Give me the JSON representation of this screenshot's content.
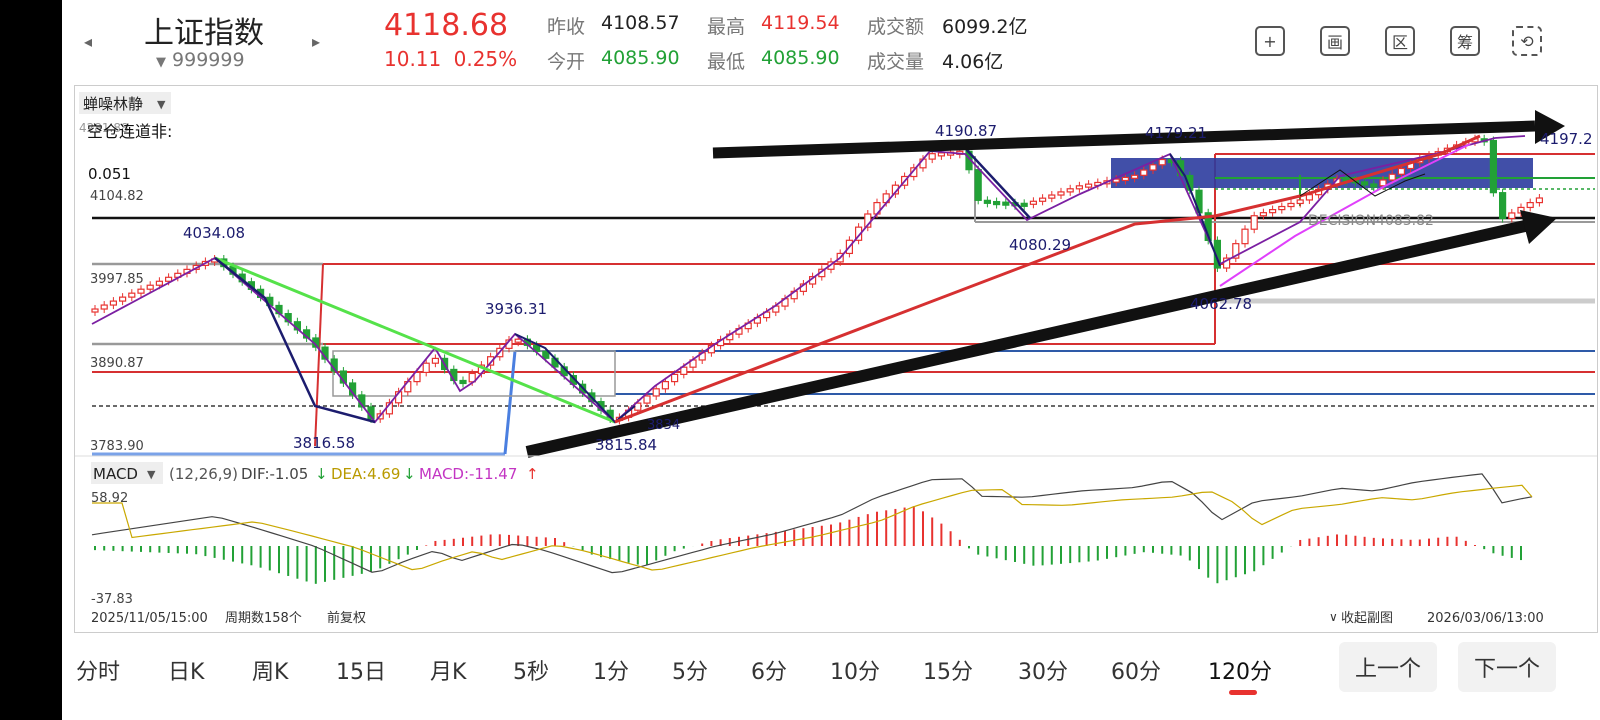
{
  "header": {
    "title": "上证指数",
    "code": "999999",
    "price": "4118.68",
    "change": "10.11",
    "change_pct": "0.25%",
    "stats": {
      "prev_close_label": "昨收",
      "prev_close": "4108.57",
      "high_label": "最高",
      "high": "4119.54",
      "amount_label": "成交额",
      "amount": "6099.2亿",
      "open_label": "今开",
      "open": "4085.90",
      "low_label": "最低",
      "low": "4085.90",
      "volume_label": "成交量",
      "volume": "4.06亿"
    },
    "tools": [
      {
        "name": "add-icon",
        "glyph": "+"
      },
      {
        "name": "draw-icon",
        "glyph": "画"
      },
      {
        "name": "range-icon",
        "glyph": "区"
      },
      {
        "name": "chips-icon",
        "glyph": "筹"
      },
      {
        "name": "rotate-screen-icon",
        "glyph": "⟲"
      }
    ]
  },
  "indicator_selector": "蝉噪林静",
  "chart_annotations": {
    "status_text": "空仓连道非:",
    "value_0051": "0.051",
    "decision_text": "DECISION4083.82",
    "top_left_label": "4281.88"
  },
  "price_axis": [
    "3997.85",
    "3890.87",
    "3783.90",
    "4104.82"
  ],
  "peak_labels": [
    "4034.08",
    "3936.31",
    "4190.87",
    "4179.21",
    "4080.29",
    "3816.58",
    "3815.84",
    "4197.2",
    "4062.78",
    "3834"
  ],
  "macd": {
    "name": "MACD",
    "params": "(12,26,9)",
    "dif": "DIF:-1.05",
    "dea": "DEA:4.69",
    "macd_val": "MACD:-11.47",
    "dif_arrow": "↓",
    "dea_arrow": "↓",
    "macd_arrow": "↑",
    "ymax": "58.92",
    "ymin": "-37.83",
    "collapse_label": "收起副图"
  },
  "footer": {
    "start_time": "2025/11/05/15:00",
    "period_count": "周期数158个",
    "adjust": "前复权",
    "end_time": "2026/03/06/13:00"
  },
  "timeframes": [
    "分时",
    "日K",
    "周K",
    "15日",
    "月K",
    "5秒",
    "1分",
    "5分",
    "6分",
    "10分",
    "15分",
    "30分",
    "60分",
    "120分"
  ],
  "active_timeframe": "120分",
  "pager": {
    "prev": "上一个",
    "next": "下一个"
  },
  "colors": {
    "up": "#e8322f",
    "down": "#22a136",
    "accent": "#e8322f",
    "zigzag": "#1c1c6e"
  }
}
